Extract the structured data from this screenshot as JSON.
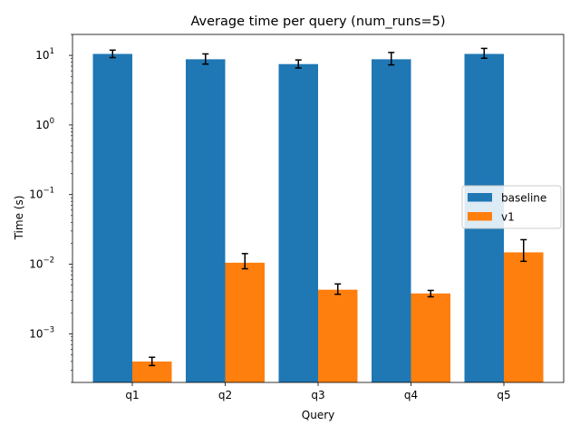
{
  "chart_data": {
    "type": "bar",
    "title": "Average time per query (num_runs=5)",
    "xlabel": "Query",
    "ylabel": "Time (s)",
    "yscale": "log",
    "ylim": [
      0.0002,
      20
    ],
    "yticks": [
      {
        "value": 0.001,
        "base": "10",
        "exp": "−3"
      },
      {
        "value": 0.01,
        "base": "10",
        "exp": "−2"
      },
      {
        "value": 0.1,
        "base": "10",
        "exp": "−1"
      },
      {
        "value": 1,
        "base": "10",
        "exp": "0"
      },
      {
        "value": 10,
        "base": "10",
        "exp": "1"
      }
    ],
    "categories": [
      "q1",
      "q2",
      "q3",
      "q4",
      "q5"
    ],
    "series": [
      {
        "name": "baseline",
        "color": "#1f77b4",
        "values": [
          10.5,
          8.8,
          7.5,
          8.8,
          10.5
        ],
        "err_low": [
          9.3,
          7.5,
          6.6,
          7.3,
          9.1
        ],
        "err_high": [
          11.9,
          10.5,
          8.6,
          11.0,
          12.6
        ]
      },
      {
        "name": "v1",
        "color": "#ff7f0e",
        "values": [
          0.0004,
          0.0105,
          0.0043,
          0.0038,
          0.0148
        ],
        "err_low": [
          0.00035,
          0.0086,
          0.0037,
          0.0034,
          0.011
        ],
        "err_high": [
          0.00046,
          0.0142,
          0.0052,
          0.0042,
          0.0225
        ]
      }
    ],
    "legend": {
      "position": "right"
    },
    "grid": false
  }
}
